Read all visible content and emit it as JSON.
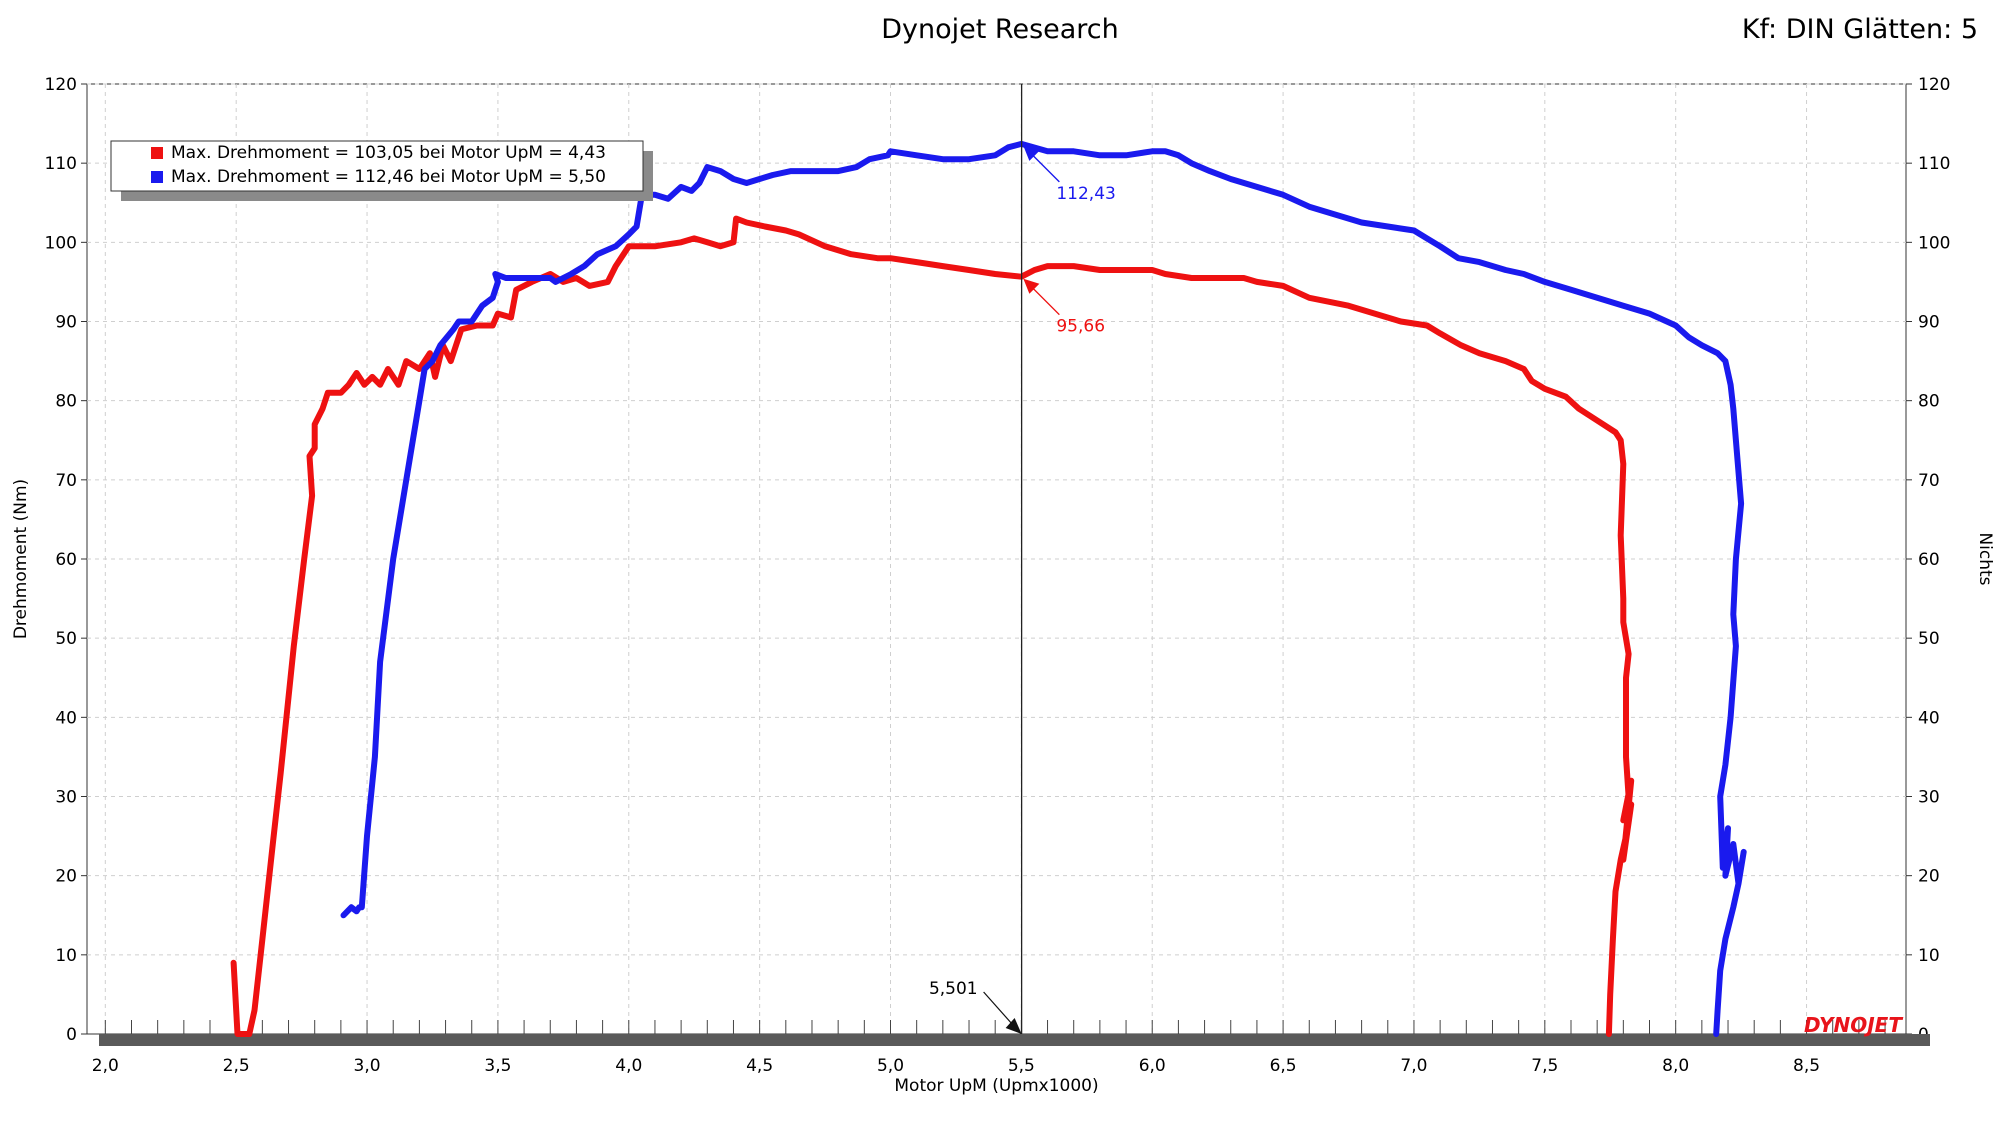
{
  "header": {
    "title": "Dynojet Research",
    "settings": "Kf: DIN Glätten: 5"
  },
  "brand": {
    "logo_text": "DYNOJET",
    "color": "#e8141b"
  },
  "chart_data": {
    "type": "line",
    "xlabel": "Motor UpM (Upmx1000)",
    "ylabel": "Drehmoment (Nm)",
    "y2label": "Nichts",
    "xlim": [
      1.93,
      8.88
    ],
    "ylim": [
      0,
      120
    ],
    "xticks": [
      "2,0",
      "2,5",
      "3,0",
      "3,5",
      "4,0",
      "4,5",
      "5,0",
      "5,5",
      "6,0",
      "6,5",
      "7,0",
      "7,5",
      "8,0",
      "8,5"
    ],
    "yticks": [
      "0",
      "10",
      "20",
      "30",
      "40",
      "50",
      "60",
      "70",
      "80",
      "90",
      "100",
      "110",
      "120"
    ],
    "grid": true,
    "legend": {
      "placement": "top-left",
      "entries": [
        "Max. Drehmoment = 103,05 bei Motor UpM = 4,43",
        "Max. Drehmoment = 112,46 bei Motor UpM = 5,50"
      ]
    },
    "cursor": {
      "x": 5.501,
      "x_label": "5,501"
    },
    "annotations": [
      {
        "series": 1,
        "x": 5.5,
        "y": 112.43,
        "label": "112,43"
      },
      {
        "series": 0,
        "x": 5.5,
        "y": 95.66,
        "label": "95,66"
      }
    ],
    "series": [
      {
        "color": "#ee1111",
        "points": [
          [
            2.49,
            9
          ],
          [
            2.5,
            3
          ],
          [
            2.505,
            0
          ],
          [
            2.55,
            0
          ],
          [
            2.57,
            3
          ],
          [
            2.6,
            12
          ],
          [
            2.64,
            24
          ],
          [
            2.67,
            33
          ],
          [
            2.72,
            49
          ],
          [
            2.76,
            60
          ],
          [
            2.79,
            68
          ],
          [
            2.78,
            73
          ],
          [
            2.8,
            74
          ],
          [
            2.8,
            77
          ],
          [
            2.83,
            79
          ],
          [
            2.85,
            81
          ],
          [
            2.9,
            81
          ],
          [
            2.93,
            82
          ],
          [
            2.96,
            83.5
          ],
          [
            2.99,
            82
          ],
          [
            3.02,
            83
          ],
          [
            3.05,
            82
          ],
          [
            3.08,
            84
          ],
          [
            3.12,
            82
          ],
          [
            3.15,
            85
          ],
          [
            3.2,
            84
          ],
          [
            3.24,
            86
          ],
          [
            3.26,
            83
          ],
          [
            3.29,
            87
          ],
          [
            3.32,
            85
          ],
          [
            3.36,
            89
          ],
          [
            3.42,
            89.5
          ],
          [
            3.48,
            89.5
          ],
          [
            3.5,
            91
          ],
          [
            3.55,
            90.5
          ],
          [
            3.57,
            94
          ],
          [
            3.63,
            95
          ],
          [
            3.7,
            96
          ],
          [
            3.75,
            95
          ],
          [
            3.8,
            95.5
          ],
          [
            3.85,
            94.5
          ],
          [
            3.92,
            95
          ],
          [
            3.95,
            97
          ],
          [
            4.0,
            99.5
          ],
          [
            4.1,
            99.5
          ],
          [
            4.2,
            100
          ],
          [
            4.25,
            100.5
          ],
          [
            4.3,
            100
          ],
          [
            4.35,
            99.5
          ],
          [
            4.4,
            100
          ],
          [
            4.41,
            103
          ],
          [
            4.45,
            102.5
          ],
          [
            4.52,
            102
          ],
          [
            4.6,
            101.5
          ],
          [
            4.65,
            101
          ],
          [
            4.75,
            99.5
          ],
          [
            4.85,
            98.5
          ],
          [
            4.95,
            98
          ],
          [
            5.0,
            98
          ],
          [
            5.1,
            97.5
          ],
          [
            5.2,
            97
          ],
          [
            5.3,
            96.5
          ],
          [
            5.4,
            96
          ],
          [
            5.5,
            95.66
          ],
          [
            5.55,
            96.5
          ],
          [
            5.6,
            97
          ],
          [
            5.7,
            97
          ],
          [
            5.8,
            96.5
          ],
          [
            5.9,
            96.5
          ],
          [
            6.0,
            96.5
          ],
          [
            6.05,
            96
          ],
          [
            6.15,
            95.5
          ],
          [
            6.25,
            95.5
          ],
          [
            6.35,
            95.5
          ],
          [
            6.4,
            95
          ],
          [
            6.5,
            94.5
          ],
          [
            6.6,
            93
          ],
          [
            6.75,
            92
          ],
          [
            6.85,
            91
          ],
          [
            6.95,
            90
          ],
          [
            7.05,
            89.5
          ],
          [
            7.1,
            88.5
          ],
          [
            7.18,
            87
          ],
          [
            7.25,
            86
          ],
          [
            7.35,
            85
          ],
          [
            7.42,
            84
          ],
          [
            7.45,
            82.5
          ],
          [
            7.5,
            81.5
          ],
          [
            7.58,
            80.5
          ],
          [
            7.63,
            79
          ],
          [
            7.7,
            77.5
          ],
          [
            7.77,
            76
          ],
          [
            7.79,
            75
          ],
          [
            7.8,
            72
          ],
          [
            7.79,
            63
          ],
          [
            7.8,
            55
          ],
          [
            7.8,
            52
          ],
          [
            7.82,
            48
          ],
          [
            7.81,
            45
          ],
          [
            7.81,
            35
          ],
          [
            7.82,
            30
          ],
          [
            7.8,
            27
          ],
          [
            7.83,
            32
          ],
          [
            7.8,
            22
          ],
          [
            7.83,
            29
          ],
          [
            7.81,
            25
          ],
          [
            7.79,
            22
          ],
          [
            7.77,
            18
          ],
          [
            7.76,
            12
          ],
          [
            7.75,
            5
          ],
          [
            7.745,
            0
          ]
        ]
      },
      {
        "color": "#1a1aee",
        "points": [
          [
            2.91,
            15
          ],
          [
            2.94,
            16
          ],
          [
            2.96,
            15.5
          ],
          [
            2.97,
            16
          ],
          [
            2.98,
            16
          ],
          [
            3.0,
            25
          ],
          [
            3.03,
            35
          ],
          [
            3.05,
            47
          ],
          [
            3.1,
            60
          ],
          [
            3.15,
            70
          ],
          [
            3.2,
            80
          ],
          [
            3.22,
            84
          ],
          [
            3.25,
            85
          ],
          [
            3.28,
            87
          ],
          [
            3.33,
            89
          ],
          [
            3.35,
            90
          ],
          [
            3.4,
            90
          ],
          [
            3.44,
            92
          ],
          [
            3.48,
            93
          ],
          [
            3.5,
            95
          ],
          [
            3.49,
            96
          ],
          [
            3.53,
            95.5
          ],
          [
            3.6,
            95.5
          ],
          [
            3.7,
            95.5
          ],
          [
            3.72,
            95
          ],
          [
            3.78,
            96
          ],
          [
            3.83,
            97
          ],
          [
            3.88,
            98.5
          ],
          [
            3.95,
            99.5
          ],
          [
            4.0,
            101
          ],
          [
            4.03,
            102
          ],
          [
            4.05,
            106
          ],
          [
            4.1,
            106
          ],
          [
            4.15,
            105.5
          ],
          [
            4.2,
            107
          ],
          [
            4.24,
            106.5
          ],
          [
            4.27,
            107.5
          ],
          [
            4.3,
            109.5
          ],
          [
            4.35,
            109
          ],
          [
            4.4,
            108
          ],
          [
            4.45,
            107.5
          ],
          [
            4.5,
            108
          ],
          [
            4.55,
            108.5
          ],
          [
            4.62,
            109
          ],
          [
            4.7,
            109
          ],
          [
            4.8,
            109
          ],
          [
            4.87,
            109.5
          ],
          [
            4.92,
            110.5
          ],
          [
            4.99,
            111
          ],
          [
            5.0,
            111.5
          ],
          [
            5.1,
            111
          ],
          [
            5.2,
            110.5
          ],
          [
            5.3,
            110.5
          ],
          [
            5.4,
            111
          ],
          [
            5.45,
            112
          ],
          [
            5.5,
            112.43
          ],
          [
            5.6,
            111.5
          ],
          [
            5.7,
            111.5
          ],
          [
            5.8,
            111
          ],
          [
            5.9,
            111
          ],
          [
            6.0,
            111.5
          ],
          [
            6.05,
            111.5
          ],
          [
            6.1,
            111
          ],
          [
            6.15,
            110
          ],
          [
            6.22,
            109
          ],
          [
            6.3,
            108
          ],
          [
            6.4,
            107
          ],
          [
            6.5,
            106
          ],
          [
            6.6,
            104.5
          ],
          [
            6.7,
            103.5
          ],
          [
            6.8,
            102.5
          ],
          [
            6.9,
            102
          ],
          [
            7.0,
            101.5
          ],
          [
            7.05,
            100.5
          ],
          [
            7.1,
            99.5
          ],
          [
            7.17,
            98
          ],
          [
            7.25,
            97.5
          ],
          [
            7.35,
            96.5
          ],
          [
            7.42,
            96
          ],
          [
            7.5,
            95
          ],
          [
            7.6,
            94
          ],
          [
            7.7,
            93
          ],
          [
            7.8,
            92
          ],
          [
            7.9,
            91
          ],
          [
            8.0,
            89.5
          ],
          [
            8.05,
            88
          ],
          [
            8.1,
            87
          ],
          [
            8.16,
            86
          ],
          [
            8.19,
            85
          ],
          [
            8.21,
            82
          ],
          [
            8.22,
            79
          ],
          [
            8.25,
            67
          ],
          [
            8.23,
            60
          ],
          [
            8.22,
            53
          ],
          [
            8.23,
            49
          ],
          [
            8.21,
            40
          ],
          [
            8.19,
            34
          ],
          [
            8.17,
            30
          ],
          [
            8.18,
            21
          ],
          [
            8.2,
            26
          ],
          [
            8.19,
            20
          ],
          [
            8.22,
            24
          ],
          [
            8.24,
            19
          ],
          [
            8.26,
            23
          ],
          [
            8.24,
            19
          ],
          [
            8.22,
            16
          ],
          [
            8.19,
            12
          ],
          [
            8.17,
            8
          ],
          [
            8.16,
            3
          ],
          [
            8.155,
            0
          ]
        ]
      }
    ]
  }
}
